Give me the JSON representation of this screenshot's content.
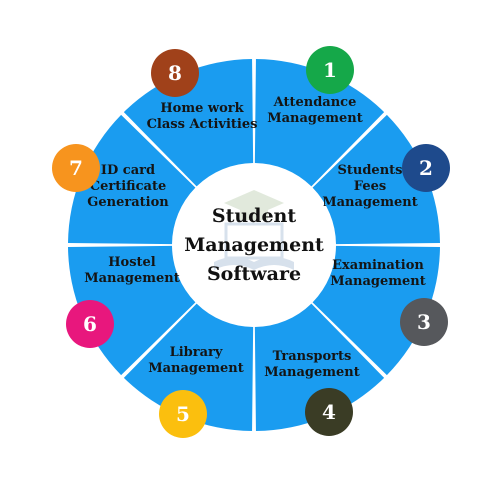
{
  "title_lines": [
    "Student",
    "Management",
    "Software"
  ],
  "ring_color": "#1a9cf0",
  "logo_color": "#b8c9de",
  "segments": [
    {
      "number": "1",
      "badge_color": "#15a849",
      "label_lines": [
        "Attendance",
        "Management"
      ]
    },
    {
      "number": "2",
      "badge_color": "#1e4a8c",
      "label_lines": [
        "Students",
        "Fees",
        "Management"
      ]
    },
    {
      "number": "3",
      "badge_color": "#56585c",
      "label_lines": [
        "Examination",
        "Management"
      ]
    },
    {
      "number": "4",
      "badge_color": "#3a3c25",
      "label_lines": [
        "Transports",
        "Management"
      ]
    },
    {
      "number": "5",
      "badge_color": "#fbbf0e",
      "label_lines": [
        "Library",
        "Management"
      ]
    },
    {
      "number": "6",
      "badge_color": "#e8177d",
      "label_lines": [
        "Hostel",
        "Management"
      ]
    },
    {
      "number": "7",
      "badge_color": "#f7941e",
      "label_lines": [
        "ID card",
        "Certificate",
        "Generation"
      ]
    },
    {
      "number": "8",
      "badge_color": "#a0411a",
      "label_lines": [
        "Home work",
        "Class Activities"
      ]
    }
  ]
}
